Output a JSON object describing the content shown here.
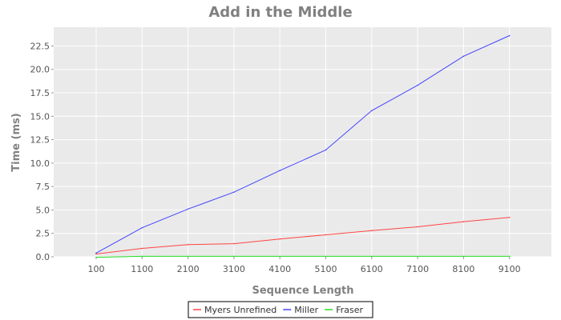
{
  "chart_data": {
    "type": "line",
    "title": "Add in the Middle",
    "xlabel": "Sequence Length",
    "ylabel": "Time (ms)",
    "categories": [
      "100",
      "1100",
      "2100",
      "3100",
      "4100",
      "5100",
      "6100",
      "7100",
      "8100",
      "9100"
    ],
    "ylim": [
      0,
      24.5
    ],
    "yticks": [
      "0.0",
      "2.5",
      "5.0",
      "7.5",
      "10.0",
      "12.5",
      "15.0",
      "17.5",
      "20.0",
      "22.5"
    ],
    "ytick_values": [
      0,
      2.5,
      5,
      7.5,
      10,
      12.5,
      15,
      17.5,
      20,
      22.5
    ],
    "grid": true,
    "legend_position": "bottom",
    "series": [
      {
        "name": "Myers Unrefined",
        "color": "#ff4444",
        "values": [
          0.3,
          0.9,
          1.3,
          1.4,
          1.9,
          2.35,
          2.8,
          3.2,
          3.75,
          4.2
        ]
      },
      {
        "name": "Miller",
        "color": "#4444ff",
        "values": [
          0.4,
          3.1,
          5.1,
          6.9,
          9.2,
          11.4,
          15.6,
          18.3,
          21.4,
          23.6
        ]
      },
      {
        "name": "Fraser",
        "color": "#22dd22",
        "values": [
          -0.05,
          0.05,
          0.05,
          0.05,
          0.05,
          0.05,
          0.05,
          0.05,
          0.05,
          0.05
        ]
      }
    ]
  }
}
